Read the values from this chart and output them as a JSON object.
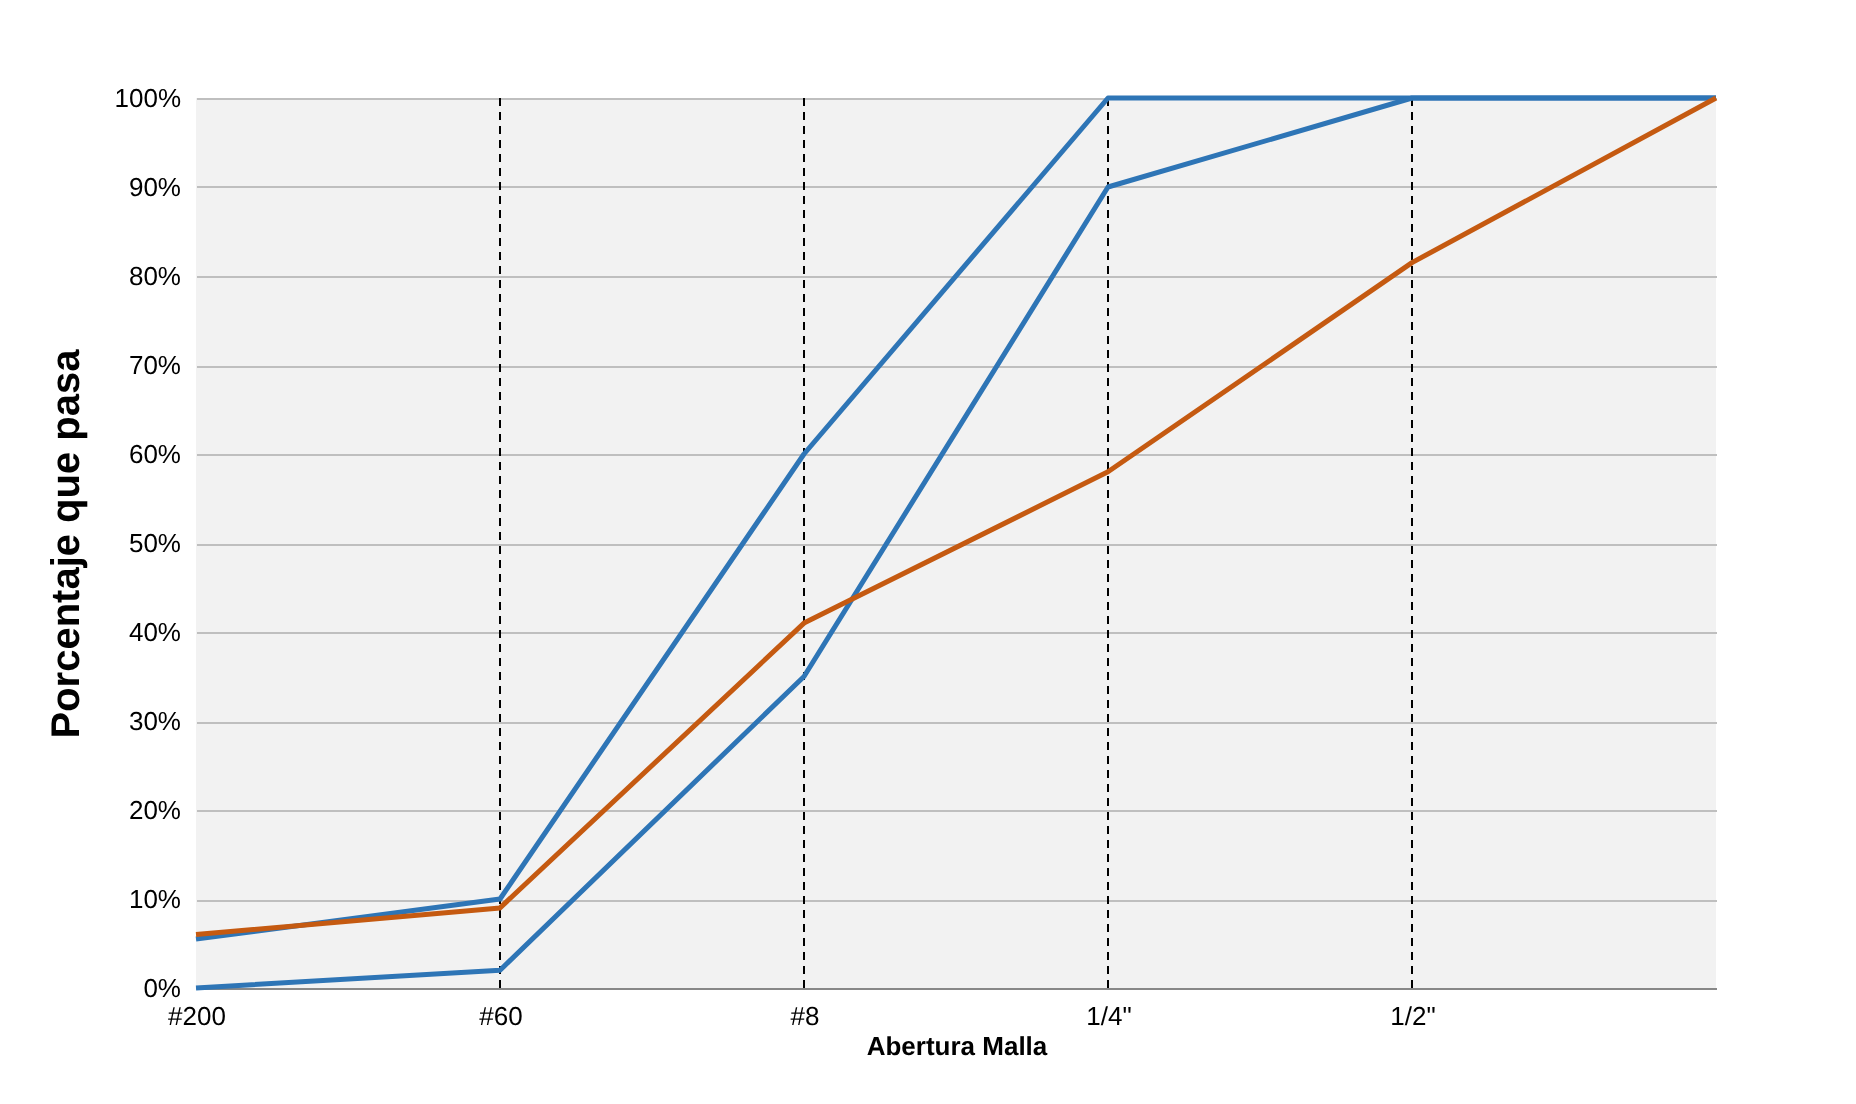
{
  "chart_data": {
    "type": "line",
    "xlabel": "Abertura Malla",
    "ylabel": "Porcentaje que pasa",
    "categories": [
      "#200",
      "#60",
      "#8",
      "1/4\"",
      "1/2\"",
      null
    ],
    "ylim": [
      0,
      100
    ],
    "yticks": [
      {
        "value": 0,
        "label": "0%"
      },
      {
        "value": 10,
        "label": "10%"
      },
      {
        "value": 20,
        "label": "20%"
      },
      {
        "value": 30,
        "label": "30%"
      },
      {
        "value": 40,
        "label": "40%"
      },
      {
        "value": 50,
        "label": "50%"
      },
      {
        "value": 60,
        "label": "60%"
      },
      {
        "value": 70,
        "label": "70%"
      },
      {
        "value": 80,
        "label": "80%"
      },
      {
        "value": 90,
        "label": "90%"
      },
      {
        "value": 100,
        "label": "100%"
      }
    ],
    "series": [
      {
        "color": "#2e75b6",
        "values": [
          5.5,
          10,
          60,
          100,
          100,
          100
        ]
      },
      {
        "color": "#2e75b6",
        "values": [
          0,
          2,
          35,
          90,
          100,
          100
        ]
      },
      {
        "color": "#c55a11",
        "values": [
          6,
          9,
          41,
          58,
          81.5,
          100
        ]
      }
    ],
    "ref_lines": [
      {
        "axis": "x",
        "value": "#60",
        "color": "#000000",
        "line_style": "dashed"
      },
      {
        "axis": "x",
        "value": "#8",
        "color": "#000000",
        "line_style": "dashed"
      },
      {
        "axis": "x",
        "value": "1/4\"",
        "color": "#000000",
        "line_style": "dashed"
      },
      {
        "axis": "x",
        "value": "1/2\"",
        "color": "#000000",
        "line_style": "dashed"
      }
    ],
    "grid": "y",
    "legend": false,
    "line_style": "solid",
    "marker": "none"
  }
}
